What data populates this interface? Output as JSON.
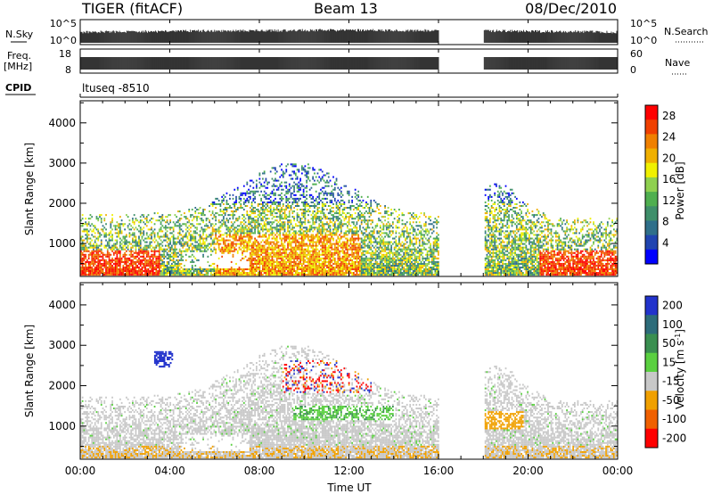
{
  "header": {
    "radar": "TIGER (fitACF)",
    "beam": "Beam 13",
    "date": "08/Dec/2010"
  },
  "panels": {
    "noise": {
      "left_label": "N.Sky",
      "left_ticks": [
        "10^5",
        "10^0"
      ],
      "right_ticks": [
        "10^5",
        "10^0"
      ],
      "right_label": "N.Search"
    },
    "freq": {
      "left_label_1": "Freq.",
      "left_label_2": "[MHz]",
      "left_ticks": [
        "18",
        "8"
      ],
      "right_ticks": [
        "60",
        "0"
      ],
      "right_label": "Nave"
    },
    "cpid": {
      "label": "CPID",
      "value": "ltuseq -8510"
    }
  },
  "chart_data": [
    {
      "type": "heatmap",
      "name": "power",
      "x": [
        0,
        24
      ],
      "xticks": [
        "00:00",
        "04:00",
        "08:00",
        "12:00",
        "16:00",
        "20:00",
        "00:00"
      ],
      "xlabel": "Time UT",
      "ylabel": "Slant Range [km]",
      "ylim": [
        180,
        4550
      ],
      "yticks": [
        1000,
        2000,
        3000,
        4000
      ],
      "colorbar": {
        "label": "Power [dB]",
        "ticks": [
          4,
          8,
          12,
          16,
          20,
          24,
          28
        ],
        "range": [
          0,
          30
        ]
      },
      "data_gap_hours": [
        16.0,
        18.0
      ]
    },
    {
      "type": "heatmap",
      "name": "velocity",
      "x": [
        0,
        24
      ],
      "xticks": [
        "00:00",
        "04:00",
        "08:00",
        "12:00",
        "16:00",
        "20:00",
        "00:00"
      ],
      "xlabel": "Time UT",
      "ylabel": "Slant Range [km]",
      "ylim": [
        180,
        4550
      ],
      "yticks": [
        1000,
        2000,
        3000,
        4000
      ],
      "colorbar": {
        "label": "Velocity [m s^-1]",
        "ticks": [
          200,
          100,
          50,
          15,
          -15,
          -50,
          -100,
          -200
        ]
      },
      "data_gap_hours": [
        16.0,
        18.0
      ]
    }
  ],
  "colors": {
    "power_scale": [
      "#0000ff",
      "#2044b0",
      "#2f6f8a",
      "#3f8f6a",
      "#4faf4f",
      "#8fd04f",
      "#f0f000",
      "#f0b000",
      "#f08000",
      "#f04000",
      "#ff0000"
    ],
    "velocity_scale": [
      "#2233cc",
      "#2d6c7a",
      "#3a8f50",
      "#5ad040",
      "#c8c8c8",
      "#f0a000",
      "#f06000",
      "#ff0000"
    ]
  }
}
